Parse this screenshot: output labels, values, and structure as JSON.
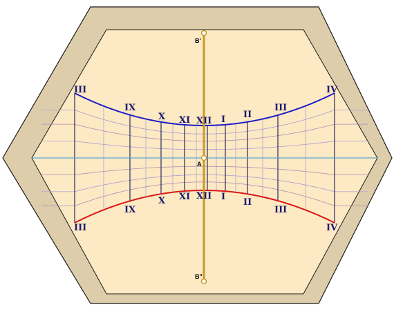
{
  "colors": {
    "frame": "#decdab",
    "face": "#fde9c3",
    "outline": "#1a1a1a",
    "top_curve": "#1e1ec8",
    "bottom_curve": "#d81818",
    "hour_line": "#444466",
    "horizon_line": "#5aa8dc",
    "gnomon": "#c89a28",
    "declination_line": "#a89ad4"
  },
  "points": {
    "top": "B'",
    "center": "A",
    "bottom": "B\""
  },
  "hour_labels": [
    {
      "id": "iii-left",
      "text": "III"
    },
    {
      "id": "ix",
      "text": "IX"
    },
    {
      "id": "x",
      "text": "X"
    },
    {
      "id": "xi",
      "text": "XI"
    },
    {
      "id": "xii",
      "text": "XII"
    },
    {
      "id": "i",
      "text": "I"
    },
    {
      "id": "ii",
      "text": "II"
    },
    {
      "id": "iii-right",
      "text": "III"
    },
    {
      "id": "iv",
      "text": "IV"
    }
  ]
}
